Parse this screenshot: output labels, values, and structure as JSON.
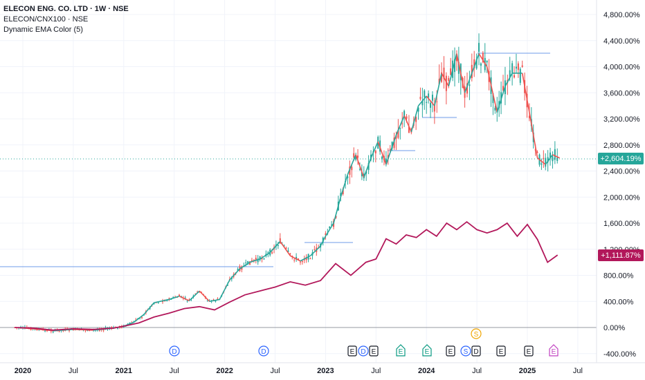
{
  "legend": {
    "title": "ELECON ENG. CO. LTD · 1W · NSE",
    "compare": "ELECON/CNX100 · NSE",
    "indicator": "Dynamic EMA Color (5)"
  },
  "chart_data": {
    "type": "line",
    "x_labels": [
      "2020",
      "Jul",
      "2021",
      "Jul",
      "2022",
      "Jul",
      "2023",
      "Jul",
      "2024",
      "Jul",
      "2025",
      "Jul"
    ],
    "y_labels": [
      "4,800.00%",
      "4,400.00%",
      "4,000.00%",
      "3,600.00%",
      "3,200.00%",
      "2,800.00%",
      "2,400.00%",
      "2,000.00%",
      "1,600.00%",
      "1,200.00%",
      "800.00%",
      "400.00%",
      "0.00%",
      "-400.00%"
    ],
    "ylim": [
      -450,
      4950
    ],
    "series": [
      {
        "name": "ELECON ENG. CO. LTD",
        "color_up": "#26a69a",
        "color_down": "#ef5350",
        "x": [
          2019.92,
          2020.1,
          2020.3,
          2020.5,
          2020.7,
          2020.9,
          2021.0,
          2021.1,
          2021.2,
          2021.3,
          2021.45,
          2021.55,
          2021.65,
          2021.75,
          2021.85,
          2021.95,
          2022.05,
          2022.15,
          2022.25,
          2022.35,
          2022.45,
          2022.55,
          2022.65,
          2022.75,
          2022.85,
          2022.95,
          2023.0,
          2023.08,
          2023.15,
          2023.22,
          2023.3,
          2023.38,
          2023.45,
          2023.52,
          2023.6,
          2023.7,
          2023.78,
          2023.85,
          2023.92,
          2024.0,
          2024.08,
          2024.15,
          2024.22,
          2024.3,
          2024.38,
          2024.45,
          2024.52,
          2024.6,
          2024.7,
          2024.78,
          2024.85,
          2024.95,
          2025.02,
          2025.1,
          2025.18,
          2025.25,
          2025.32
        ],
        "values": [
          0,
          -20,
          -50,
          -30,
          -40,
          -10,
          20,
          80,
          200,
          380,
          430,
          480,
          410,
          560,
          400,
          430,
          730,
          900,
          1000,
          1050,
          1150,
          1320,
          1100,
          1020,
          1100,
          1250,
          1400,
          1600,
          2000,
          2350,
          2650,
          2300,
          2600,
          2850,
          2500,
          2950,
          3250,
          3000,
          3400,
          3550,
          3400,
          3900,
          3700,
          4200,
          3600,
          3900,
          4200,
          4000,
          3300,
          3700,
          3900,
          3900,
          3300,
          2600,
          2500,
          2650,
          2600
        ]
      },
      {
        "name": "ELECON/CNX100",
        "color": "#b2175a",
        "x": [
          2019.92,
          2020.1,
          2020.3,
          2020.5,
          2020.7,
          2020.9,
          2021.0,
          2021.15,
          2021.3,
          2021.45,
          2021.6,
          2021.75,
          2021.9,
          2022.05,
          2022.2,
          2022.35,
          2022.5,
          2022.65,
          2022.8,
          2022.95,
          2023.1,
          2023.25,
          2023.4,
          2023.5,
          2023.6,
          2023.7,
          2023.8,
          2023.9,
          2024.0,
          2024.1,
          2024.2,
          2024.3,
          2024.4,
          2024.5,
          2024.6,
          2024.7,
          2024.8,
          2024.9,
          2025.0,
          2025.1,
          2025.2,
          2025.3
        ],
        "values": [
          0,
          -10,
          -40,
          -20,
          -30,
          -10,
          20,
          70,
          160,
          220,
          290,
          320,
          270,
          390,
          500,
          560,
          620,
          700,
          650,
          720,
          980,
          800,
          1000,
          1050,
          1360,
          1280,
          1420,
          1380,
          1500,
          1400,
          1600,
          1500,
          1620,
          1500,
          1450,
          1500,
          1600,
          1400,
          1580,
          1350,
          1000,
          1111.87
        ]
      }
    ],
    "last_values": {
      "main": "+2,604.19%",
      "compare": "+1,111.87%"
    },
    "event_markers": [
      "D",
      "D",
      "E",
      "D",
      "E",
      "E",
      "E",
      "E",
      "S",
      "D",
      "E",
      "E",
      "E",
      "E"
    ],
    "grid": true
  }
}
